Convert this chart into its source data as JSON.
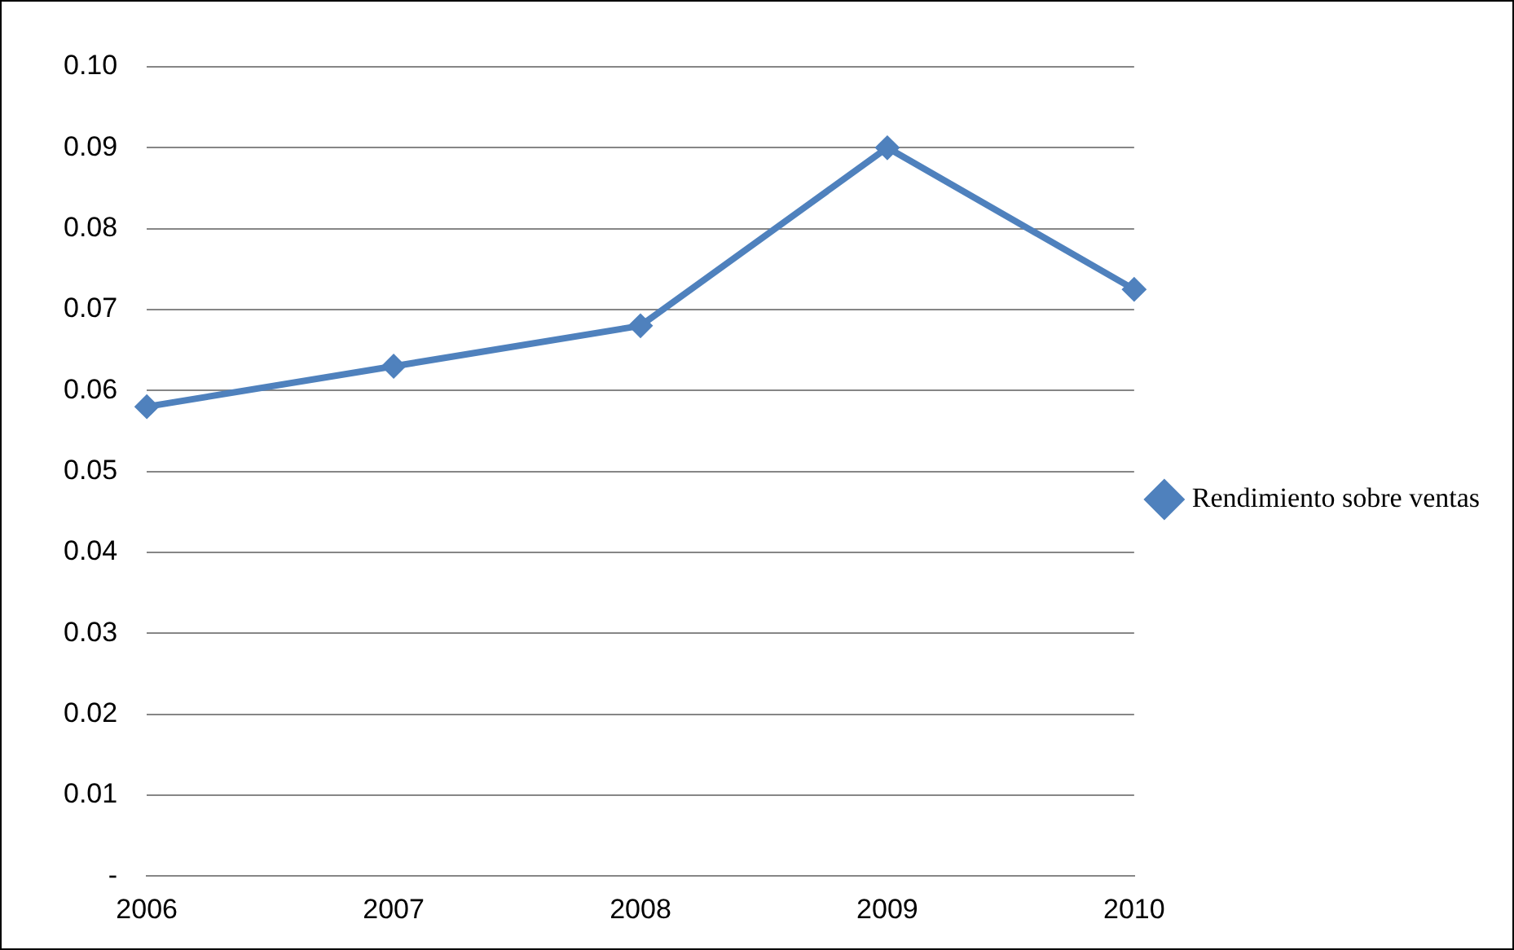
{
  "chart_data": {
    "type": "line",
    "categories": [
      "2006",
      "2007",
      "2008",
      "2009",
      "2010"
    ],
    "series": [
      {
        "name": "Rendimiento sobre ventas",
        "color": "#4f81bd",
        "values": [
          0.058,
          0.063,
          0.068,
          0.09,
          0.0725
        ]
      }
    ],
    "ylim": [
      0,
      0.1
    ],
    "yticks": [
      {
        "value": 0,
        "label": "-"
      },
      {
        "value": 0.01,
        "label": "0.01"
      },
      {
        "value": 0.02,
        "label": "0.02"
      },
      {
        "value": 0.03,
        "label": "0.03"
      },
      {
        "value": 0.04,
        "label": "0.04"
      },
      {
        "value": 0.05,
        "label": "0.05"
      },
      {
        "value": 0.06,
        "label": "0.06"
      },
      {
        "value": 0.07,
        "label": "0.07"
      },
      {
        "value": 0.08,
        "label": "0.08"
      },
      {
        "value": 0.09,
        "label": "0.09"
      },
      {
        "value": 0.1,
        "label": "0.10"
      }
    ],
    "grid": "y",
    "legend": "right",
    "marker": "diamond",
    "line_style": "solid"
  }
}
